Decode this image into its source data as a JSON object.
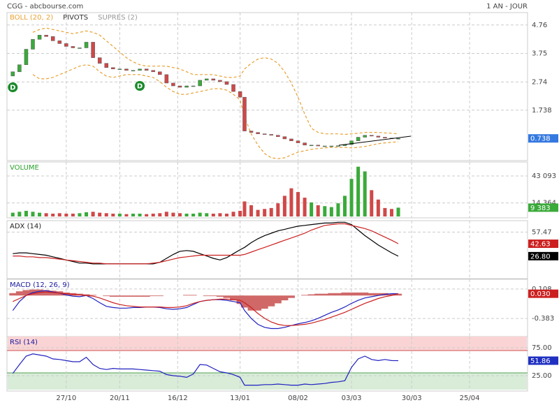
{
  "header": {
    "left": "CGG - abcbourse.com",
    "right": "1 AN - JOUR"
  },
  "chart_data": [
    {
      "type": "candlestick",
      "legend": [
        {
          "text": "BOLL (20, 2)",
          "color": "#e8a030"
        },
        {
          "text": "PIVOTS",
          "color": "#333333"
        },
        {
          "text": "SUPRES (2)",
          "color": "#999999"
        }
      ],
      "x": [
        -24,
        -21,
        -18,
        -15,
        -12,
        -9,
        -6,
        -3,
        0,
        3,
        6,
        9,
        12,
        15,
        18,
        21,
        24,
        27,
        30,
        33,
        36,
        39,
        42,
        45,
        48,
        51,
        54,
        57,
        60,
        63,
        66,
        69,
        72,
        75,
        78,
        80,
        83,
        86,
        89,
        92,
        95,
        98,
        101,
        104,
        107,
        110,
        113,
        116,
        119,
        122,
        125,
        128,
        131,
        134,
        137,
        140,
        143,
        146,
        149
      ],
      "xlim": [
        -26.6,
        207
      ],
      "xticks": [
        {
          "value": 0,
          "label": "27/10"
        },
        {
          "value": 24,
          "label": "20/11"
        },
        {
          "value": 50,
          "label": "16/12"
        },
        {
          "value": 78,
          "label": "13/01"
        },
        {
          "value": 104,
          "label": "08/02"
        },
        {
          "value": 128,
          "label": "03/03"
        },
        {
          "value": 155,
          "label": "30/03"
        },
        {
          "value": 181,
          "label": "25/04"
        }
      ],
      "ylim": [
        0,
        5.2
      ],
      "yticks": [
        4.76,
        3.75,
        2.74,
        1.738
      ],
      "up_color": "#3aaa3a",
      "down_color": "#d04848",
      "open": [
        2.95,
        3.1,
        3.35,
        3.9,
        4.25,
        4.4,
        4.35,
        4.2,
        4.1,
        4.0,
        3.95,
        3.95,
        4.15,
        3.6,
        3.4,
        3.25,
        3.2,
        3.2,
        3.15,
        3.15,
        3.2,
        3.15,
        3.1,
        3.0,
        2.7,
        2.6,
        2.55,
        2.6,
        2.6,
        2.8,
        2.85,
        2.8,
        2.75,
        2.65,
        2.4,
        2.2,
        1.0,
        0.95,
        0.9,
        0.88,
        0.85,
        0.8,
        0.72,
        0.65,
        0.58,
        0.5,
        0.5,
        0.47,
        0.47,
        0.47,
        0.48,
        0.52,
        0.65,
        0.78,
        0.85,
        0.82,
        0.78,
        0.75,
        0.73
      ],
      "close": [
        3.1,
        3.35,
        3.9,
        4.25,
        4.4,
        4.35,
        4.2,
        4.1,
        4.0,
        3.95,
        3.95,
        4.15,
        3.6,
        3.4,
        3.25,
        3.2,
        3.2,
        3.15,
        3.15,
        3.2,
        3.15,
        3.1,
        3.0,
        2.7,
        2.6,
        2.55,
        2.6,
        2.6,
        2.8,
        2.85,
        2.8,
        2.75,
        2.65,
        2.4,
        2.2,
        1.0,
        0.95,
        0.9,
        0.88,
        0.85,
        0.8,
        0.72,
        0.65,
        0.58,
        0.5,
        0.5,
        0.47,
        0.47,
        0.47,
        0.48,
        0.52,
        0.65,
        0.78,
        0.85,
        0.82,
        0.78,
        0.75,
        0.73,
        0.738
      ],
      "last_label": "0.738",
      "box_color": "#3478e0",
      "series": [
        {
          "color": "#e8a030",
          "dashed": true,
          "values": [
            null,
            null,
            null,
            4.5,
            4.6,
            4.65,
            4.6,
            4.55,
            4.5,
            4.45,
            4.5,
            4.55,
            4.5,
            4.4,
            4.2,
            4.0,
            3.8,
            3.6,
            3.45,
            3.35,
            3.3,
            3.3,
            3.3,
            3.3,
            3.25,
            3.2,
            3.1,
            3.0,
            3.0,
            3.0,
            3.0,
            2.95,
            2.9,
            2.9,
            2.95,
            3.2,
            3.4,
            3.55,
            3.6,
            3.55,
            3.4,
            3.1,
            2.7,
            2.2,
            1.6,
            1.1,
            0.95,
            0.9,
            0.9,
            0.9,
            0.88,
            0.9,
            0.92,
            0.95,
            0.95,
            0.95,
            0.93,
            0.92,
            0.9
          ]
        },
        {
          "color": "#e8a030",
          "dashed": true,
          "values": [
            null,
            null,
            null,
            3.0,
            2.85,
            2.85,
            2.9,
            3.0,
            3.1,
            3.2,
            3.3,
            3.35,
            3.3,
            3.1,
            2.95,
            2.9,
            2.95,
            3.0,
            3.0,
            3.0,
            2.95,
            2.9,
            2.75,
            2.55,
            2.4,
            2.3,
            2.3,
            2.35,
            2.4,
            2.45,
            2.5,
            2.5,
            2.45,
            2.3,
            2.1,
            1.5,
            0.9,
            0.5,
            0.2,
            0.05,
            0.02,
            0.05,
            0.15,
            0.25,
            0.3,
            0.35,
            0.38,
            0.4,
            0.42,
            0.42,
            0.42,
            0.4,
            0.42,
            0.45,
            0.5,
            0.55,
            0.58,
            0.6,
            0.62
          ]
        }
      ],
      "annotations": [
        {
          "text": "D",
          "x": -24,
          "y": 2.55,
          "color": "#1a8a2a"
        },
        {
          "text": "D",
          "x": 33,
          "y": 2.6,
          "color": "#1a8a2a"
        }
      ]
    },
    {
      "type": "volume",
      "title": "VOLUME",
      "title_color": "#2aa02a",
      "ylim": [
        0,
        58000
      ],
      "yticks": [
        {
          "value": 43093,
          "label": "43 093"
        },
        {
          "value": 14364,
          "label": "14 364"
        }
      ],
      "values": [
        4000,
        5000,
        6000,
        5000,
        4000,
        3500,
        3000,
        3500,
        3000,
        3000,
        3500,
        4500,
        5000,
        4000,
        3500,
        3000,
        3000,
        2500,
        3000,
        3000,
        2500,
        3000,
        3500,
        5000,
        4000,
        3500,
        3000,
        3000,
        4000,
        3500,
        3000,
        3500,
        3000,
        5000,
        6000,
        16000,
        12000,
        7000,
        8000,
        9000,
        14000,
        22000,
        30000,
        26000,
        20000,
        15000,
        12000,
        11000,
        10000,
        14000,
        22000,
        40000,
        53000,
        48000,
        28000,
        18000,
        9000,
        8000,
        9383
      ],
      "last_label": "9 383",
      "box_color": "#3aaa3a"
    },
    {
      "type": "line",
      "title": "ADX (14)",
      "title_color": "#222222",
      "ylim": [
        0,
        72
      ],
      "yticks": [
        57.47
      ],
      "series": [
        {
          "color": "#000000",
          "values": [
            30,
            31,
            31,
            30,
            29,
            28,
            26,
            24,
            22,
            20,
            18,
            18,
            17,
            17,
            17,
            17,
            17,
            17,
            17,
            17,
            17,
            17,
            19,
            24,
            29,
            33,
            34,
            33,
            30,
            27,
            24,
            22,
            25,
            30,
            35,
            38,
            44,
            49,
            53,
            56,
            59,
            61,
            63,
            65,
            66,
            67,
            68,
            69,
            69,
            70,
            70,
            67,
            60,
            53,
            47,
            41,
            36,
            31,
            26.8
          ],
          "last_label": "26.80",
          "box_color": "#000000"
        },
        {
          "color": "#cc2020",
          "values": [
            27,
            27,
            26,
            26,
            25,
            25,
            24,
            23,
            22,
            21,
            20,
            19,
            18,
            18,
            17,
            17,
            17,
            17,
            17,
            17,
            17,
            18,
            19,
            21,
            23,
            25,
            26,
            27,
            28,
            28,
            28,
            28,
            28,
            28,
            28,
            29,
            32,
            35,
            38,
            41,
            44,
            47,
            50,
            53,
            56,
            60,
            63,
            66,
            67,
            68,
            68,
            66,
            64,
            62,
            59,
            55,
            51,
            47,
            42.63
          ],
          "last_label": "42.63",
          "box_color": "#cc2020"
        }
      ]
    },
    {
      "type": "macd",
      "title": "MACD (12, 26, 9)",
      "title_color": "#1a1aa0",
      "ylim": [
        -0.66,
        0.27
      ],
      "yticks": [
        0.108,
        -0.383
      ],
      "histogram": {
        "color": "#d06868",
        "values": [
          0.04,
          0.07,
          0.09,
          0.1,
          0.1,
          0.09,
          0.08,
          0.07,
          0.05,
          0.04,
          0.03,
          0.02,
          0.01,
          0.0,
          -0.01,
          -0.02,
          -0.02,
          -0.02,
          -0.02,
          -0.02,
          -0.02,
          -0.01,
          -0.01,
          0.0,
          0.0,
          0.0,
          0.01,
          0.01,
          0.0,
          -0.01,
          -0.01,
          -0.02,
          -0.04,
          -0.08,
          -0.14,
          -0.2,
          -0.25,
          -0.25,
          -0.22,
          -0.18,
          -0.13,
          -0.08,
          -0.04,
          0.0,
          0.01,
          0.02,
          0.03,
          0.03,
          0.04,
          0.04,
          0.05,
          0.05,
          0.05,
          0.05,
          0.04,
          0.04,
          0.04,
          0.03,
          0.03
        ]
      },
      "series": [
        {
          "color": "#2020c0",
          "values": [
            -0.25,
            -0.1,
            0.0,
            0.05,
            0.07,
            0.08,
            0.06,
            0.04,
            0.01,
            -0.01,
            -0.02,
            0.0,
            -0.05,
            -0.12,
            -0.18,
            -0.2,
            -0.21,
            -0.21,
            -0.2,
            -0.2,
            -0.19,
            -0.19,
            -0.2,
            -0.22,
            -0.23,
            -0.22,
            -0.2,
            -0.15,
            -0.1,
            -0.08,
            -0.07,
            -0.07,
            -0.08,
            -0.1,
            -0.12,
            -0.25,
            -0.38,
            -0.48,
            -0.53,
            -0.55,
            -0.55,
            -0.53,
            -0.5,
            -0.47,
            -0.45,
            -0.42,
            -0.38,
            -0.33,
            -0.28,
            -0.24,
            -0.19,
            -0.13,
            -0.08,
            -0.04,
            -0.02,
            0.0,
            0.02,
            0.03,
            0.03
          ]
        },
        {
          "color": "#cc2020",
          "values": [
            -0.1,
            -0.05,
            0.0,
            0.03,
            0.05,
            0.06,
            0.05,
            0.04,
            0.03,
            0.02,
            0.01,
            0.0,
            -0.01,
            -0.04,
            -0.08,
            -0.12,
            -0.15,
            -0.17,
            -0.18,
            -0.19,
            -0.19,
            -0.19,
            -0.19,
            -0.2,
            -0.2,
            -0.19,
            -0.17,
            -0.13,
            -0.1,
            -0.08,
            -0.07,
            -0.06,
            -0.06,
            -0.07,
            -0.08,
            -0.12,
            -0.2,
            -0.3,
            -0.38,
            -0.44,
            -0.48,
            -0.5,
            -0.5,
            -0.49,
            -0.48,
            -0.46,
            -0.43,
            -0.4,
            -0.36,
            -0.32,
            -0.28,
            -0.23,
            -0.18,
            -0.13,
            -0.09,
            -0.05,
            -0.02,
            0.0,
            0.03
          ],
          "last_label": "0.030",
          "box_color": "#cc2020"
        }
      ]
    },
    {
      "type": "rsi",
      "title": "RSI (14)",
      "title_color": "#1a1aa0",
      "ylim": [
        0,
        95
      ],
      "yticks": [
        {
          "value": 75,
          "label": "75.00"
        },
        {
          "value": 25,
          "label": "25.00"
        }
      ],
      "zones": [
        {
          "from": 70,
          "to": 95,
          "color": "#fad4d4",
          "line": "#d05050"
        },
        {
          "from": 0,
          "to": 30,
          "color": "#d8ecd8",
          "line": "#50a050"
        }
      ],
      "series": [
        {
          "color": "#2020c0",
          "values": [
            29,
            45,
            60,
            64,
            62,
            60,
            55,
            54,
            52,
            50,
            50,
            58,
            45,
            38,
            36,
            38,
            37,
            37,
            37,
            36,
            35,
            34,
            33,
            27,
            25,
            24,
            22,
            28,
            45,
            44,
            38,
            32,
            30,
            27,
            22,
            8,
            8,
            8,
            9,
            9,
            10,
            9,
            8,
            8,
            10,
            9,
            10,
            11,
            13,
            14,
            16,
            40,
            55,
            60,
            54,
            52,
            54,
            52,
            51.86
          ],
          "last_label": "51.86",
          "box_color": "#2030c0"
        }
      ]
    }
  ]
}
